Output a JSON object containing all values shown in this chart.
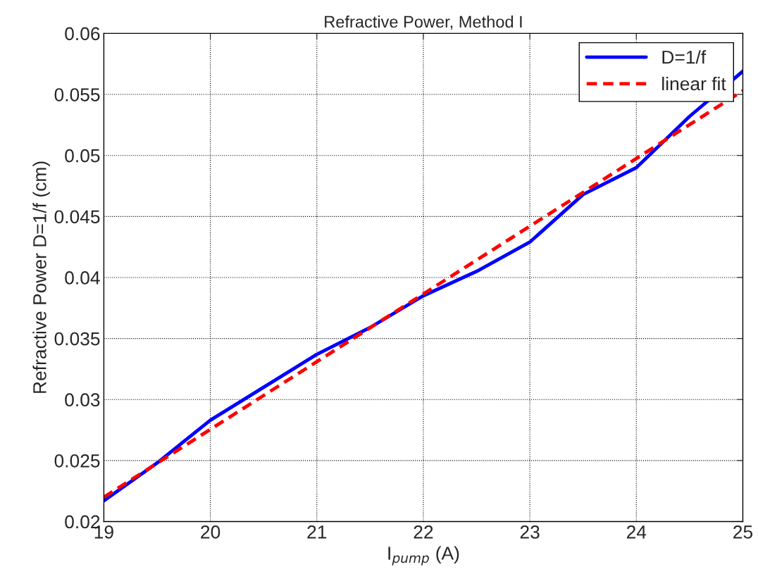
{
  "chart_data": {
    "type": "line",
    "title": "Refractive Power, Method I",
    "xlabel": "I$_{pump}$ (A)",
    "ylabel": "Refractive Power D=1/f (cm)",
    "series": [
      {
        "name": "D=1/f",
        "color": "#0000ff",
        "line_style": "solid",
        "x": [
          19,
          19.5,
          20,
          20.5,
          21,
          21.5,
          22,
          22.5,
          23,
          23.5,
          24,
          24.5,
          25
        ],
        "values": [
          0.0217,
          0.0248,
          0.0283,
          0.031,
          0.0337,
          0.0359,
          0.0385,
          0.0405,
          0.0429,
          0.0468,
          0.049,
          0.0532,
          0.0569
        ]
      },
      {
        "name": "linear fit",
        "color": "#ff0000",
        "line_style": "dashed",
        "x": [
          19,
          25
        ],
        "values": [
          0.022,
          0.0553
        ]
      }
    ],
    "xlim": [
      19,
      25
    ],
    "ylim": [
      0.02,
      0.06
    ],
    "xticks": [
      19,
      20,
      21,
      22,
      23,
      24,
      25
    ],
    "yticks": [
      0.02,
      0.025,
      0.03,
      0.035,
      0.04,
      0.045,
      0.05,
      0.055,
      0.06
    ],
    "grid": true,
    "legend": "top right",
    "marker": "none"
  }
}
